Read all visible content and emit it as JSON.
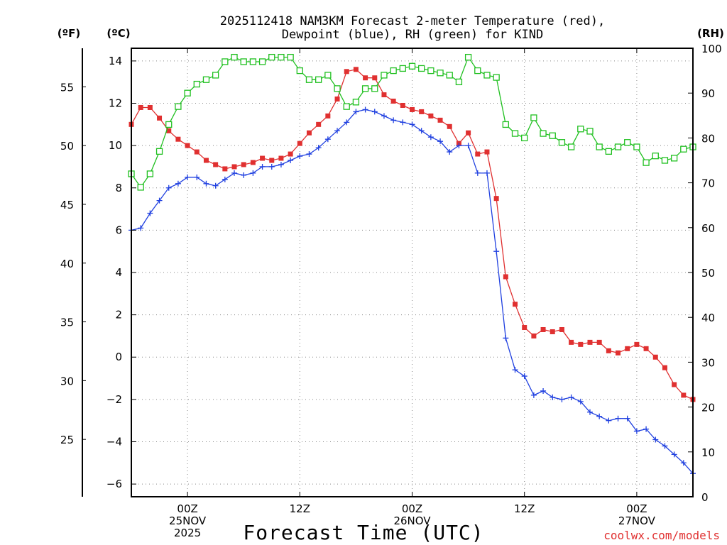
{
  "chart_data": {
    "type": "line",
    "title_line1": "2025112418 NAM3KM Forecast 2-meter Temperature (red),",
    "title_line2": "Dewpoint (blue), RH (green) for KIND",
    "xlabel": "Forecast Time (UTC)",
    "credit": "coolwx.com/models",
    "y_fahrenheit": {
      "label": "(ºF)",
      "ticks": [
        25,
        30,
        35,
        40,
        45,
        50,
        55
      ],
      "tick_labels": [
        "25",
        "30",
        "35",
        "40",
        "45",
        "50",
        "55"
      ]
    },
    "y_celsius": {
      "label": "(ºC)",
      "range": [
        -6.6,
        14.6
      ],
      "ticks": [
        -6,
        -4,
        -2,
        0,
        2,
        4,
        6,
        8,
        10,
        12,
        14
      ],
      "tick_labels": [
        "−6",
        "−4",
        "−2",
        "0",
        "2",
        "4",
        "6",
        "8",
        "10",
        "12",
        "14"
      ]
    },
    "y_rh": {
      "label": "(RH)",
      "range": [
        0,
        100
      ],
      "ticks": [
        0,
        10,
        20,
        30,
        40,
        50,
        60,
        70,
        80,
        90,
        100
      ],
      "tick_labels": [
        "0",
        "10",
        "20",
        "30",
        "40",
        "50",
        "60",
        "70",
        "80",
        "90",
        "100"
      ]
    },
    "x_range_hours": [
      0,
      60
    ],
    "x_ticks": [
      {
        "hour": 6,
        "lines": [
          "00Z",
          "25NOV",
          "2025"
        ]
      },
      {
        "hour": 18,
        "lines": [
          "12Z"
        ]
      },
      {
        "hour": 30,
        "lines": [
          "00Z",
          "26NOV"
        ]
      },
      {
        "hour": 42,
        "lines": [
          "12Z"
        ]
      },
      {
        "hour": 54,
        "lines": [
          "00Z",
          "27NOV"
        ]
      }
    ],
    "series": [
      {
        "name": "Temperature",
        "unit": "C",
        "color": "#e03030",
        "marker": "filled-square",
        "x": [
          0,
          1,
          2,
          3,
          4,
          5,
          6,
          7,
          8,
          9,
          10,
          11,
          12,
          13,
          14,
          15,
          16,
          17,
          18,
          19,
          20,
          21,
          22,
          23,
          24,
          25,
          26,
          27,
          28,
          29,
          30,
          31,
          32,
          33,
          34,
          35,
          36,
          37,
          38,
          39,
          40,
          41,
          42,
          43,
          44,
          45,
          46,
          47,
          48,
          49,
          50,
          51,
          52,
          53,
          54,
          55,
          56,
          57,
          58,
          59,
          60
        ],
        "values": [
          11.0,
          11.8,
          11.8,
          11.3,
          10.7,
          10.3,
          10.0,
          9.7,
          9.3,
          9.1,
          8.9,
          9.0,
          9.1,
          9.2,
          9.4,
          9.3,
          9.4,
          9.6,
          10.1,
          10.6,
          11.0,
          11.4,
          12.2,
          13.5,
          13.6,
          13.2,
          13.2,
          12.4,
          12.1,
          11.9,
          11.7,
          11.6,
          11.4,
          11.2,
          10.9,
          10.1,
          10.6,
          9.6,
          9.7,
          7.5,
          3.8,
          2.5,
          1.4,
          1.0,
          1.3,
          1.2,
          1.3,
          0.7,
          0.6,
          0.7,
          0.7,
          0.3,
          0.2,
          0.4,
          0.6,
          0.4,
          0.0,
          -0.5,
          -1.3,
          -1.8,
          -2.0
        ]
      },
      {
        "name": "Dewpoint",
        "unit": "C",
        "color": "#2040e0",
        "marker": "plus",
        "x": [
          0,
          1,
          2,
          3,
          4,
          5,
          6,
          7,
          8,
          9,
          10,
          11,
          12,
          13,
          14,
          15,
          16,
          17,
          18,
          19,
          20,
          21,
          22,
          23,
          24,
          25,
          26,
          27,
          28,
          29,
          30,
          31,
          32,
          33,
          34,
          35,
          36,
          37,
          38,
          39,
          40,
          41,
          42,
          43,
          44,
          45,
          46,
          47,
          48,
          49,
          50,
          51,
          52,
          53,
          54,
          55,
          56,
          57,
          58,
          59,
          60
        ],
        "values": [
          6.0,
          6.1,
          6.8,
          7.4,
          8.0,
          8.2,
          8.5,
          8.5,
          8.2,
          8.1,
          8.4,
          8.7,
          8.6,
          8.7,
          9.0,
          9.0,
          9.1,
          9.3,
          9.5,
          9.6,
          9.9,
          10.3,
          10.7,
          11.1,
          11.6,
          11.7,
          11.6,
          11.4,
          11.2,
          11.1,
          11.0,
          10.7,
          10.4,
          10.2,
          9.7,
          10.0,
          10.0,
          8.7,
          8.7,
          5.0,
          0.9,
          -0.6,
          -0.9,
          -1.8,
          -1.6,
          -1.9,
          -2.0,
          -1.9,
          -2.1,
          -2.6,
          -2.8,
          -3.0,
          -2.9,
          -2.9,
          -3.5,
          -3.4,
          -3.9,
          -4.2,
          -4.6,
          -5.0,
          -5.5
        ]
      },
      {
        "name": "RH",
        "unit": "%",
        "color": "#20c020",
        "marker": "open-square",
        "x": [
          0,
          1,
          2,
          3,
          4,
          5,
          6,
          7,
          8,
          9,
          10,
          11,
          12,
          13,
          14,
          15,
          16,
          17,
          18,
          19,
          20,
          21,
          22,
          23,
          24,
          25,
          26,
          27,
          28,
          29,
          30,
          31,
          32,
          33,
          34,
          35,
          36,
          37,
          38,
          39,
          40,
          41,
          42,
          43,
          44,
          45,
          46,
          47,
          48,
          49,
          50,
          51,
          52,
          53,
          54,
          55,
          56,
          57,
          58,
          59,
          60
        ],
        "values": [
          72,
          69,
          72,
          77,
          83,
          87,
          90,
          92,
          93,
          94,
          97,
          98,
          97,
          97,
          97,
          98,
          98,
          98,
          95,
          93,
          93,
          94,
          91,
          87,
          88,
          91,
          91,
          94,
          95,
          95.5,
          96,
          95.5,
          95,
          94.5,
          94,
          92.5,
          98,
          95,
          94,
          93.5,
          83,
          81,
          80,
          84.5,
          81,
          80.5,
          79,
          78,
          82,
          81.5,
          78,
          77,
          78,
          79,
          78,
          74.5,
          76,
          75,
          75.5,
          77.5,
          78
        ]
      }
    ]
  }
}
